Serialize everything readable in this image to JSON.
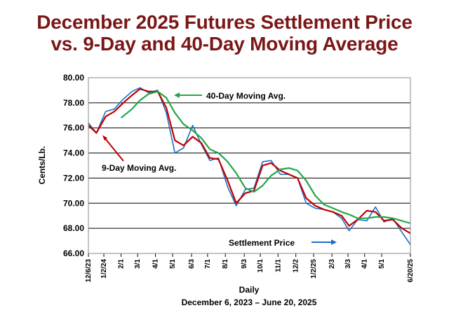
{
  "chart_data": {
    "type": "line",
    "title_line1": "December 2025 Futures Settlement Price",
    "title_line2": "vs. 9-Day and 40-Day Moving Average",
    "ylabel": "Cents/Lb.",
    "xlabel": "Daily",
    "xlabel2": "December 6, 2023 – June 20, 2025",
    "ylim": [
      66,
      80
    ],
    "y_ticks": [
      "66.00",
      "68.00",
      "70.00",
      "72.00",
      "74.00",
      "76.00",
      "78.00",
      "80.00"
    ],
    "grid": "horizontal",
    "x_tick_labels": [
      "12/6/23",
      "1/2/24",
      "2/1",
      "3/1",
      "4/1",
      "5/1",
      "6/3",
      "7/1",
      "8/1",
      "9/3",
      "10/1",
      "11/1",
      "12/2",
      "1/2/25",
      "2/3",
      "3/3",
      "4/1",
      "5/1",
      "6/20/25"
    ],
    "x_dates": [
      "2023-12-06",
      "2024-01-02",
      "2024-02-01",
      "2024-03-01",
      "2024-04-01",
      "2024-05-01",
      "2024-06-03",
      "2024-07-01",
      "2024-08-01",
      "2024-09-03",
      "2024-10-01",
      "2024-11-01",
      "2024-12-02",
      "2025-01-02",
      "2025-02-03",
      "2025-03-03",
      "2025-04-01",
      "2025-05-01",
      "2025-06-20"
    ],
    "series": [
      {
        "name": "Settlement Price",
        "color": "#1f6fc8",
        "x": [
          "2023-12-06",
          "2023-12-20",
          "2024-01-05",
          "2024-01-20",
          "2024-02-05",
          "2024-02-20",
          "2024-03-05",
          "2024-03-20",
          "2024-04-05",
          "2024-04-20",
          "2024-05-05",
          "2024-05-20",
          "2024-06-05",
          "2024-06-20",
          "2024-07-05",
          "2024-07-20",
          "2024-08-05",
          "2024-08-20",
          "2024-09-05",
          "2024-09-20",
          "2024-10-05",
          "2024-10-20",
          "2024-11-05",
          "2024-11-20",
          "2024-12-05",
          "2024-12-20",
          "2025-01-05",
          "2025-01-20",
          "2025-02-05",
          "2025-02-20",
          "2025-03-05",
          "2025-03-20",
          "2025-04-05",
          "2025-04-20",
          "2025-05-05",
          "2025-05-20",
          "2025-06-05",
          "2025-06-20"
        ],
        "y": [
          76.4,
          75.6,
          77.3,
          77.5,
          78.3,
          78.9,
          79.2,
          78.8,
          79.0,
          77.2,
          74.0,
          74.4,
          76.2,
          74.7,
          73.4,
          73.6,
          71.3,
          69.8,
          71.1,
          71.2,
          73.3,
          73.4,
          72.3,
          72.3,
          72.0,
          70.0,
          69.6,
          69.5,
          69.3,
          68.8,
          67.8,
          68.7,
          68.6,
          69.7,
          68.5,
          68.8,
          67.7,
          66.7
        ]
      },
      {
        "name": "9-Day Moving Avg.",
        "color": "#c00000",
        "x": [
          "2023-12-06",
          "2023-12-20",
          "2024-01-05",
          "2024-01-20",
          "2024-02-05",
          "2024-02-20",
          "2024-03-05",
          "2024-03-20",
          "2024-04-05",
          "2024-04-20",
          "2024-05-05",
          "2024-05-20",
          "2024-06-05",
          "2024-06-20",
          "2024-07-05",
          "2024-07-20",
          "2024-08-05",
          "2024-08-20",
          "2024-09-05",
          "2024-09-20",
          "2024-10-05",
          "2024-10-20",
          "2024-11-05",
          "2024-11-20",
          "2024-12-05",
          "2024-12-20",
          "2025-01-05",
          "2025-01-20",
          "2025-02-05",
          "2025-02-20",
          "2025-03-05",
          "2025-03-20",
          "2025-04-05",
          "2025-04-20",
          "2025-05-05",
          "2025-05-20",
          "2025-06-05",
          "2025-06-20"
        ],
        "y": [
          76.2,
          75.6,
          76.9,
          77.3,
          78.0,
          78.6,
          79.1,
          78.9,
          78.9,
          77.6,
          75.0,
          74.6,
          75.3,
          74.8,
          73.6,
          73.5,
          71.8,
          70.0,
          70.8,
          71.0,
          73.0,
          73.2,
          72.6,
          72.3,
          72.0,
          70.4,
          69.8,
          69.5,
          69.3,
          69.0,
          68.2,
          68.7,
          69.4,
          69.3,
          68.6,
          68.7,
          68.0,
          67.6
        ]
      },
      {
        "name": "40-Day Moving Avg.",
        "color": "#22a84a",
        "x": [
          "2024-02-01",
          "2024-02-20",
          "2024-03-05",
          "2024-03-20",
          "2024-04-05",
          "2024-04-20",
          "2024-05-05",
          "2024-05-20",
          "2024-06-05",
          "2024-06-20",
          "2024-07-05",
          "2024-07-20",
          "2024-08-05",
          "2024-08-20",
          "2024-09-05",
          "2024-09-20",
          "2024-10-05",
          "2024-10-20",
          "2024-11-05",
          "2024-11-20",
          "2024-12-05",
          "2024-12-20",
          "2025-01-05",
          "2025-01-20",
          "2025-02-05",
          "2025-02-20",
          "2025-03-05",
          "2025-03-20",
          "2025-04-05",
          "2025-04-20",
          "2025-05-05",
          "2025-05-20",
          "2025-06-05",
          "2025-06-20"
        ],
        "y": [
          76.8,
          77.5,
          78.2,
          78.7,
          78.9,
          78.4,
          77.2,
          76.3,
          75.8,
          75.2,
          74.3,
          74.0,
          73.3,
          72.4,
          71.2,
          70.9,
          71.4,
          72.2,
          72.7,
          72.8,
          72.6,
          71.8,
          70.6,
          69.9,
          69.6,
          69.3,
          69.1,
          68.8,
          68.8,
          68.9,
          68.9,
          68.8,
          68.6,
          68.4
        ]
      }
    ],
    "annotations": [
      {
        "text": "40-Day Moving Avg.",
        "color": "#22a84a"
      },
      {
        "text": "9-Day Moving Avg.",
        "color": "#c00000"
      },
      {
        "text": "Settlement Price",
        "color": "#1f6fc8"
      }
    ]
  }
}
